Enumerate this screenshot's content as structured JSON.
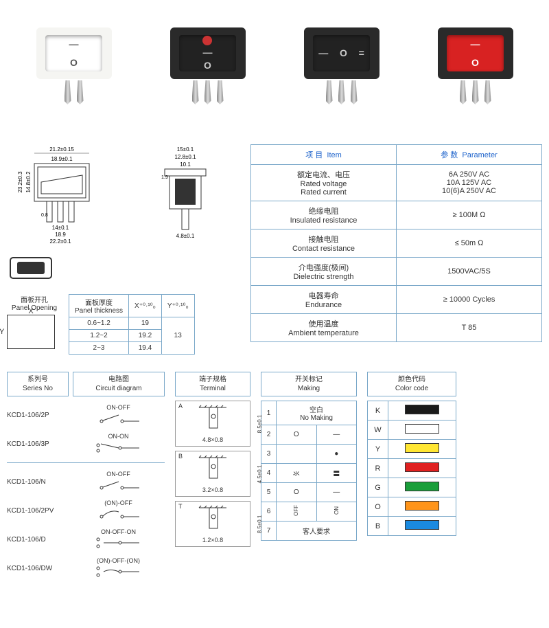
{
  "products": [
    {
      "body_color": "#f5f5f2",
      "panel_color": "#ffffff",
      "symbols": [
        "—",
        "O"
      ],
      "symbol_color": "#555",
      "led": null,
      "pins": 2
    },
    {
      "body_color": "#2a2a2a",
      "panel_color": "#222",
      "symbols": [
        "—",
        "O"
      ],
      "symbol_color": "#ccc",
      "led": "#cc3333",
      "pins": 3
    },
    {
      "body_color": "#2a2a2a",
      "panel_color": "#222",
      "symbols": [
        "—",
        "O",
        "="
      ],
      "symbol_color": "#ccc",
      "led": null,
      "pins": 3,
      "horizontal": true
    },
    {
      "body_color": "#2a2a2a",
      "panel_color": "#d82222",
      "symbols": [
        "—",
        "O"
      ],
      "symbol_color": "#fff",
      "led": null,
      "pins": 3
    }
  ],
  "dimensions_front": {
    "w_outer": "21.2±0.15",
    "w_inner": "18.9±0.1",
    "h_outer": "23.2±0.3",
    "h_inner": "14.8±0.2",
    "pin_gap": "0.8",
    "pin_w": "14±0.1",
    "base_w": "18.9",
    "overall_w": "22.2±0.1"
  },
  "dimensions_side": {
    "top": "15±0.1",
    "mid": "12.8±0.1",
    "inner": "10.1",
    "lip": "1.9",
    "pin": "4.8±0.1"
  },
  "panel_opening": {
    "label_cn": "面板开孔",
    "label_en": "Panel Opening",
    "thickness_label_cn": "面板厚度",
    "thickness_label_en": "Panel thickness",
    "x_hdr": "X⁺⁰·¹⁰₀",
    "y_hdr": "Y⁺⁰·¹⁰₀",
    "rows": [
      {
        "t": "0.6~1.2",
        "x": "19",
        "y": ""
      },
      {
        "t": "1.2~2",
        "x": "19.2",
        "y": "13"
      },
      {
        "t": "2~3",
        "x": "19.4",
        "y": ""
      }
    ]
  },
  "params": {
    "hdr_item_cn": "项 目",
    "hdr_item_en": "Item",
    "hdr_param_cn": "参 数",
    "hdr_param_en": "Parameter",
    "rows": [
      {
        "cn": "额定电流、电压",
        "en1": "Rated voltage",
        "en2": "Rated current",
        "val": "6A  250V AC\n10A 125V AC\n10(6)A  250V AC"
      },
      {
        "cn": "绝缘电阻",
        "en1": "Insulated resistance",
        "val": "≥ 100M Ω"
      },
      {
        "cn": "接触电阻",
        "en1": "Contact resistance",
        "val": "≤ 50m Ω"
      },
      {
        "cn": "介电强度(极间)",
        "en1": "Dielectric strength",
        "val": "1500VAC/5S"
      },
      {
        "cn": "电器寿命",
        "en1": "Endurance",
        "val": "≥ 10000 Cycles"
      },
      {
        "cn": "使用温度",
        "en1": "Ambient temperature",
        "val": "T 85"
      }
    ]
  },
  "series": {
    "hdr_cn": "系列号",
    "hdr_en": "Series No",
    "circuit_hdr_cn": "电路图",
    "circuit_hdr_en": "Circuit diagram",
    "rows": [
      {
        "no": "KCD1-106/2P",
        "label": "ON-OFF",
        "type": "2p"
      },
      {
        "no": "KCD1-106/3P",
        "label": "ON-ON",
        "type": "3p"
      },
      {
        "no": "KCD1-106/N",
        "label": "ON-OFF",
        "type": "2p",
        "gap": true
      },
      {
        "no": "KCD1-106/2PV",
        "label": "(ON)-OFF",
        "type": "mom"
      },
      {
        "no": "KCD1-106/D",
        "label": "ON-OFF-ON",
        "type": "3pos"
      },
      {
        "no": "KCD1-106/DW",
        "label": "(ON)-OFF-(ON)",
        "type": "3posm"
      }
    ]
  },
  "terminal": {
    "hdr_cn": "端子规格",
    "hdr_en": "Terminal",
    "items": [
      {
        "lbl": "A",
        "dim": "4.8×0.8",
        "h": "8.5±0.1"
      },
      {
        "lbl": "B",
        "dim": "3.2×0.8",
        "h": "4.5±0.1"
      },
      {
        "lbl": "T",
        "dim": "1.2×0.8",
        "h": "8.5±0.1"
      }
    ]
  },
  "making": {
    "hdr_cn": "开关标记",
    "hdr_en": "Making",
    "rows": [
      {
        "n": "1",
        "a": "空白",
        "b": "No Making",
        "span": true
      },
      {
        "n": "2",
        "a": "O",
        "b": "—"
      },
      {
        "n": "3",
        "a": "",
        "b": "●"
      },
      {
        "n": "4",
        "a": "氺",
        "b": "〓"
      },
      {
        "n": "5",
        "a": "O",
        "b": "—"
      },
      {
        "n": "6",
        "a": "OFF",
        "b": "ON",
        "rot": true
      },
      {
        "n": "7",
        "a": "客人要求",
        "span": true
      }
    ]
  },
  "colors": {
    "hdr_cn": "颜色代码",
    "hdr_en": "Color code",
    "rows": [
      {
        "code": "K",
        "hex": "#1a1a1a"
      },
      {
        "code": "W",
        "hex": "#ffffff"
      },
      {
        "code": "Y",
        "hex": "#ffe633"
      },
      {
        "code": "R",
        "hex": "#e02020"
      },
      {
        "code": "G",
        "hex": "#1a9e3a"
      },
      {
        "code": "O",
        "hex": "#ff9419"
      },
      {
        "code": "B",
        "hex": "#1a8ae0"
      }
    ]
  }
}
